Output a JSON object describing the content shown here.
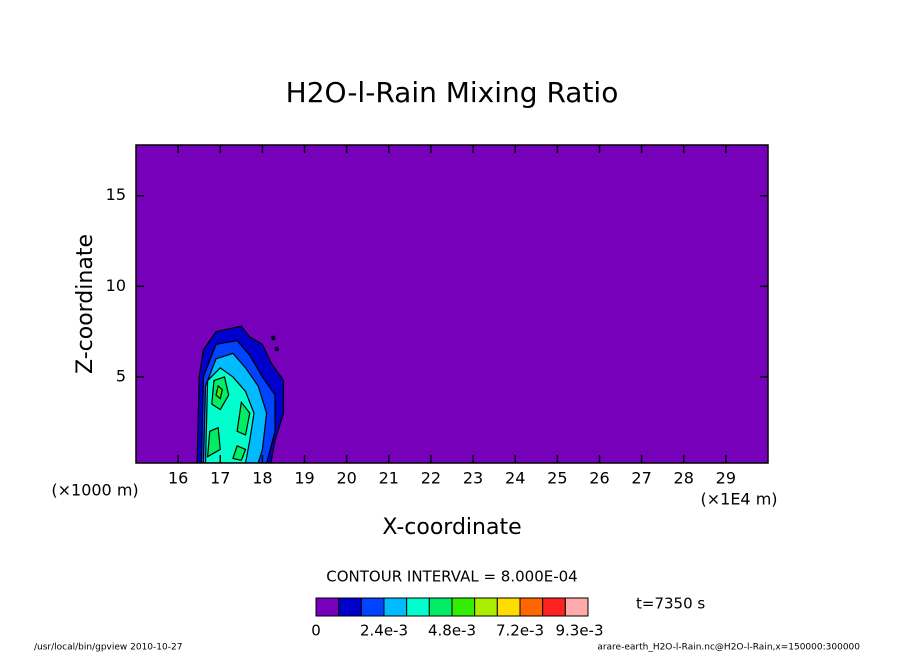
{
  "chart_data": {
    "type": "contour",
    "title": "H2O-l-Rain Mixing Ratio",
    "x_label": "X-coordinate",
    "y_label": "Z-coordinate",
    "x_unit": "(×1E4 m)",
    "y_unit": "(×1000 m)",
    "xlim": [
      15,
      30
    ],
    "ylim": [
      0.25,
      17.8
    ],
    "xticks": [
      16,
      17,
      18,
      19,
      20,
      21,
      22,
      23,
      24,
      25,
      26,
      27,
      28,
      29
    ],
    "yticks": [
      5,
      10,
      15
    ],
    "contour_note": "CONTOUR INTERVAL = 8.000E-04",
    "time_note": "t=7350 s",
    "footer_left": "/usr/local/bin/gpview  2010-10-27",
    "footer_right": "arare-earth_H2O-l-Rain.nc@H2O-l-Rain,x=150000:300000",
    "colorbar": {
      "levels": [
        0,
        0.0008,
        0.0016,
        0.0024,
        0.0032,
        0.004,
        0.0048,
        0.0056,
        0.0064,
        0.0072,
        0.008,
        0.0088,
        0.0096
      ],
      "colors": [
        "#7700bb",
        "#0000cc",
        "#0044ff",
        "#00bbff",
        "#00ffcc",
        "#00ee66",
        "#33ee00",
        "#aaee00",
        "#ffdd00",
        "#ff6600",
        "#ff2222",
        "#ffaaaa"
      ],
      "ticks": [
        {
          "value": 0,
          "label": "0"
        },
        {
          "value": 0.0024,
          "label": "2.4e-3"
        },
        {
          "value": 0.0048,
          "label": "4.8e-3"
        },
        {
          "value": 0.0072,
          "label": "7.2e-3"
        },
        {
          "value": 0.0093,
          "label": "9.3e-3"
        }
      ]
    },
    "regions": [
      {
        "level": 1,
        "points": [
          [
            16.45,
            0.25
          ],
          [
            16.5,
            5
          ],
          [
            16.6,
            6.5
          ],
          [
            16.9,
            7.5
          ],
          [
            17.5,
            7.8
          ],
          [
            17.7,
            7.2
          ],
          [
            18.0,
            6.8
          ],
          [
            18.2,
            5.8
          ],
          [
            18.5,
            4.8
          ],
          [
            18.5,
            3
          ],
          [
            18.3,
            1.5
          ],
          [
            18.2,
            0.25
          ]
        ]
      },
      {
        "level": 1,
        "points": [
          [
            18.22,
            7.2
          ],
          [
            18.28,
            7.25
          ],
          [
            18.3,
            7.1
          ],
          [
            18.24,
            7.05
          ]
        ]
      },
      {
        "level": 1,
        "points": [
          [
            18.3,
            6.6
          ],
          [
            18.36,
            6.65
          ],
          [
            18.38,
            6.5
          ],
          [
            18.32,
            6.45
          ]
        ]
      },
      {
        "level": 2,
        "points": [
          [
            16.55,
            0.25
          ],
          [
            16.6,
            5
          ],
          [
            16.9,
            6.8
          ],
          [
            17.4,
            7
          ],
          [
            17.7,
            6.2
          ],
          [
            18.0,
            5
          ],
          [
            18.3,
            4
          ],
          [
            18.3,
            2
          ],
          [
            18.1,
            0.25
          ]
        ]
      },
      {
        "level": 3,
        "points": [
          [
            16.6,
            0.25
          ],
          [
            16.65,
            4.5
          ],
          [
            16.9,
            6
          ],
          [
            17.3,
            6.3
          ],
          [
            17.6,
            5.5
          ],
          [
            17.9,
            4.5
          ],
          [
            18.1,
            3
          ],
          [
            18.0,
            1
          ],
          [
            17.9,
            0.25
          ]
        ]
      },
      {
        "level": 4,
        "points": [
          [
            16.65,
            0.25
          ],
          [
            16.7,
            4.8
          ],
          [
            17.0,
            5.5
          ],
          [
            17.3,
            5
          ],
          [
            17.6,
            4.2
          ],
          [
            17.8,
            3
          ],
          [
            17.7,
            1.5
          ],
          [
            17.6,
            0.25
          ]
        ]
      },
      {
        "level": 5,
        "points": [
          [
            16.8,
            3.5
          ],
          [
            16.85,
            4.8
          ],
          [
            17.1,
            5
          ],
          [
            17.2,
            4
          ],
          [
            17.0,
            3.2
          ]
        ]
      },
      {
        "level": 5,
        "points": [
          [
            17.4,
            2
          ],
          [
            17.5,
            3.6
          ],
          [
            17.7,
            3
          ],
          [
            17.6,
            1.8
          ]
        ]
      },
      {
        "level": 5,
        "points": [
          [
            16.7,
            0.6
          ],
          [
            16.75,
            2
          ],
          [
            16.95,
            2.2
          ],
          [
            17.0,
            1
          ]
        ]
      },
      {
        "level": 5,
        "points": [
          [
            17.3,
            0.5
          ],
          [
            17.4,
            1.2
          ],
          [
            17.6,
            1
          ],
          [
            17.5,
            0.4
          ]
        ]
      },
      {
        "level": 6,
        "points": [
          [
            16.9,
            4
          ],
          [
            16.95,
            4.5
          ],
          [
            17.05,
            4.3
          ],
          [
            17.0,
            3.8
          ]
        ]
      }
    ]
  }
}
